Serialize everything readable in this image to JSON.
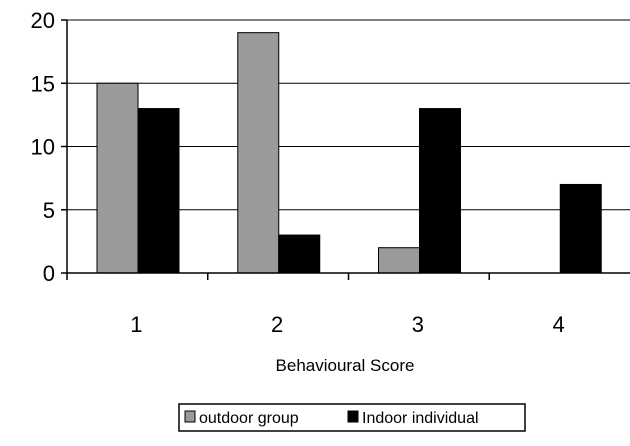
{
  "chart_data": {
    "type": "bar",
    "title": "",
    "xlabel": "Behavioural Score",
    "ylabel": "",
    "categories": [
      "1",
      "2",
      "3",
      "4"
    ],
    "ylim": [
      0,
      20
    ],
    "yticks": [
      "0",
      "5",
      "10",
      "15",
      "20"
    ],
    "grid": true,
    "legend_position": "bottom",
    "series": [
      {
        "name": "outdoor group",
        "values": [
          15,
          19,
          2,
          0
        ],
        "color": "#9a9a9a"
      },
      {
        "name": "Indoor individual",
        "values": [
          13,
          3,
          13,
          7
        ],
        "color": "#000000"
      }
    ]
  }
}
